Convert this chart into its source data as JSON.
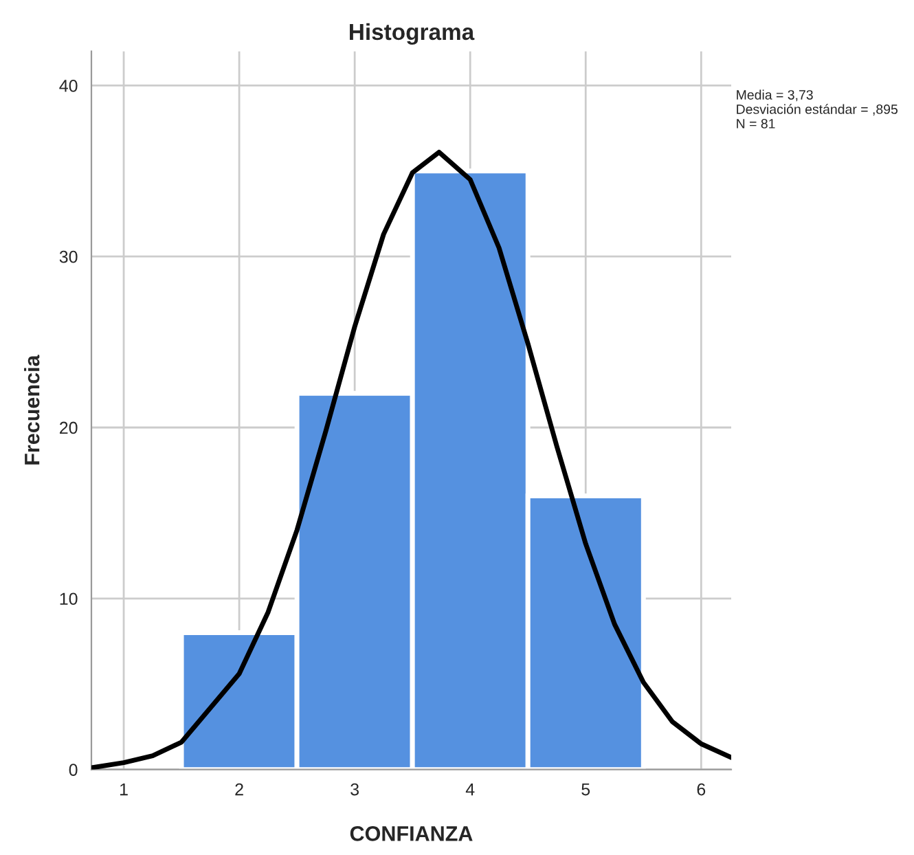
{
  "chart_data": {
    "type": "histogram",
    "title": "Histograma",
    "xlabel": "CONFIANZA",
    "ylabel": "Frecuencia",
    "bins": [
      1.5,
      2.5,
      3.5,
      4.5,
      5.5
    ],
    "values": [
      8,
      22,
      35,
      16
    ],
    "color": "#5591e0",
    "series": [
      {
        "type": "line",
        "color": "#000000",
        "x": [
          0.72,
          1.0,
          1.25,
          1.5,
          2.0,
          2.25,
          2.5,
          2.75,
          3.0,
          3.25,
          3.5,
          3.73,
          4.0,
          4.25,
          4.5,
          4.75,
          5.0,
          5.25,
          5.5,
          5.75,
          6.0,
          6.26
        ],
        "values": [
          0.1,
          0.4,
          0.8,
          1.6,
          5.6,
          9.2,
          14,
          19.8,
          25.9,
          31.3,
          34.9,
          36.1,
          34.5,
          30.5,
          24.9,
          18.9,
          13.2,
          8.5,
          5.1,
          2.8,
          1.5,
          0.7
        ]
      }
    ],
    "xlim": [
      0.72,
      6.26
    ],
    "xticks": [
      1,
      2,
      3,
      4,
      5,
      6
    ],
    "ylim": [
      0,
      42
    ],
    "yticks": [
      0,
      10,
      20,
      30,
      40
    ],
    "grid": true,
    "annotations": [
      "Media = 3,73\nDesviación estándar = ,895\nN = 81"
    ]
  }
}
